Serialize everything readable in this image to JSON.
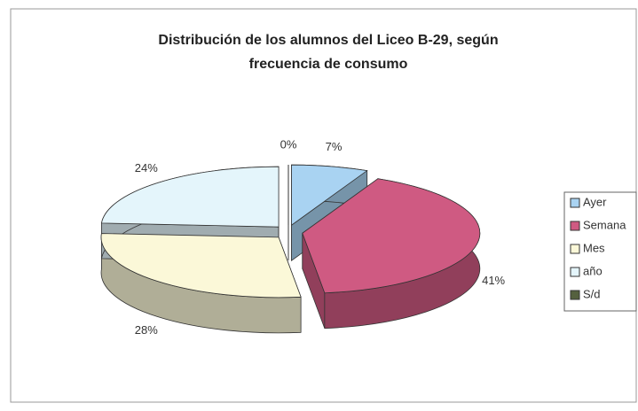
{
  "chart_data": {
    "type": "pie3d",
    "title": [
      "Distribución de los alumnos del Liceo B-29, según",
      "frecuencia de consumo"
    ],
    "categories": [
      "Ayer",
      "Semana",
      "Mes",
      "año",
      "S/d"
    ],
    "values": [
      7,
      41,
      28,
      24,
      0
    ],
    "value_labels": [
      "7%",
      "41%",
      "28%",
      "24%",
      "0%"
    ],
    "colors": [
      "#a9d3f2",
      "#cf5a82",
      "#fbf8d8",
      "#e4f5fb",
      "#55613f"
    ],
    "legend": "right"
  }
}
